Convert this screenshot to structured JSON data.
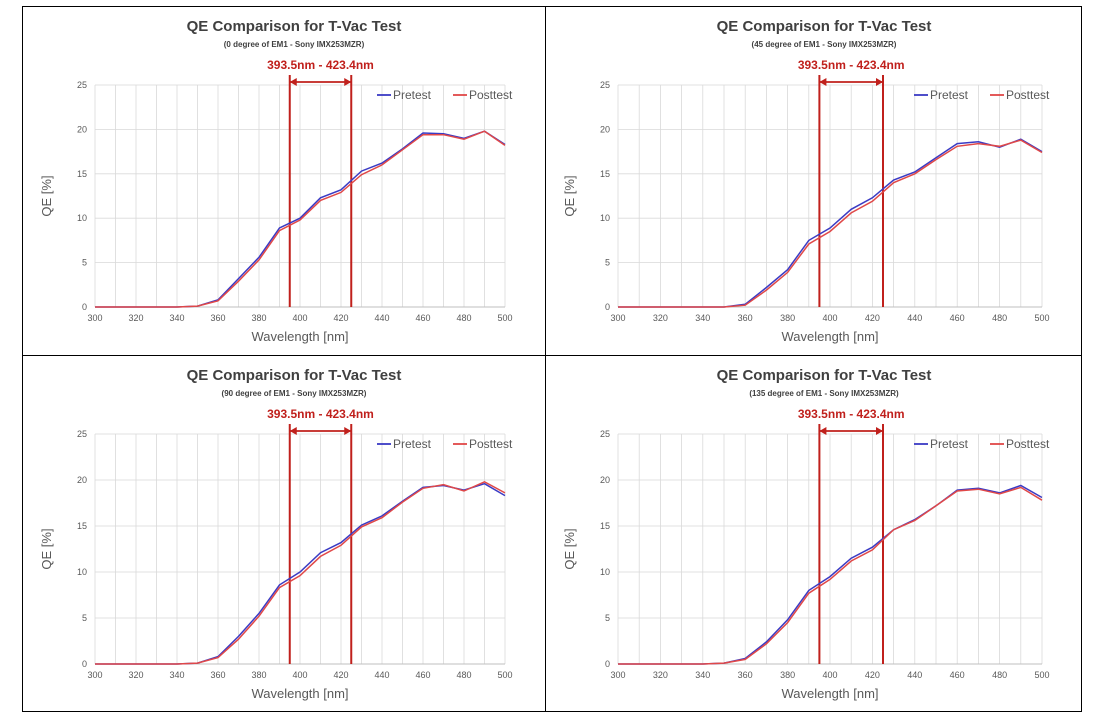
{
  "colors": {
    "pretest": "#3b3bc4",
    "posttest": "#e04848",
    "band": "#c0201c",
    "grid": "#d9d9d9",
    "axis": "#595959"
  },
  "chart_data": [
    {
      "type": "line",
      "title": "QE Comparison for T-Vac Test",
      "subtitle": "(0 degree of EM1 - Sony IMX253MZR)",
      "band_label": "393.5nm - 423.4nm",
      "band": [
        395,
        425
      ],
      "xlabel": "Wavelength [nm]",
      "ylabel": "QE [%]",
      "xlim": [
        300,
        500
      ],
      "ylim": [
        0,
        25
      ],
      "xticks": [
        "300",
        "320",
        "340",
        "360",
        "380",
        "400",
        "420",
        "440",
        "460",
        "480",
        "500"
      ],
      "yticks": [
        "0",
        "5",
        "10",
        "15",
        "20",
        "25"
      ],
      "legend": "top-right",
      "x": [
        300,
        310,
        320,
        330,
        340,
        350,
        360,
        370,
        380,
        390,
        400,
        410,
        420,
        430,
        440,
        450,
        460,
        470,
        480,
        490,
        500
      ],
      "series": [
        {
          "name": "Pretest",
          "values": [
            0,
            0,
            0,
            0,
            0,
            0.1,
            0.8,
            3.2,
            5.6,
            8.9,
            10.0,
            12.3,
            13.2,
            15.3,
            16.2,
            17.8,
            19.6,
            19.5,
            19.0,
            19.8,
            18.3
          ]
        },
        {
          "name": "Posttest",
          "values": [
            0,
            0,
            0,
            0,
            0,
            0.1,
            0.7,
            2.9,
            5.3,
            8.6,
            9.8,
            12.0,
            12.9,
            14.9,
            16.0,
            17.7,
            19.4,
            19.4,
            18.9,
            19.8,
            18.2
          ]
        }
      ]
    },
    {
      "type": "line",
      "title": "QE Comparison for T-Vac Test",
      "subtitle": "(45 degree of EM1 - Sony IMX253MZR)",
      "band_label": "393.5nm - 423.4nm",
      "band": [
        395,
        425
      ],
      "xlabel": "Wavelength [nm]",
      "ylabel": "QE [%]",
      "xlim": [
        300,
        500
      ],
      "ylim": [
        0,
        25
      ],
      "xticks": [
        "300",
        "320",
        "340",
        "360",
        "380",
        "400",
        "420",
        "440",
        "460",
        "480",
        "500"
      ],
      "yticks": [
        "0",
        "5",
        "10",
        "15",
        "20",
        "25"
      ],
      "legend": "top-right",
      "x": [
        300,
        310,
        320,
        330,
        340,
        350,
        360,
        370,
        380,
        390,
        400,
        410,
        420,
        430,
        440,
        450,
        460,
        470,
        480,
        490,
        500
      ],
      "series": [
        {
          "name": "Pretest",
          "values": [
            0,
            0,
            0,
            0,
            0,
            0,
            0.3,
            2.2,
            4.2,
            7.5,
            8.9,
            11.0,
            12.3,
            14.3,
            15.2,
            16.8,
            18.4,
            18.6,
            18.0,
            18.9,
            17.5
          ]
        },
        {
          "name": "Posttest",
          "values": [
            0,
            0,
            0,
            0,
            0,
            0,
            0.2,
            1.9,
            3.9,
            7.1,
            8.5,
            10.6,
            11.9,
            14.0,
            15.0,
            16.6,
            18.1,
            18.4,
            18.1,
            18.8,
            17.4
          ]
        }
      ]
    },
    {
      "type": "line",
      "title": "QE Comparison for T-Vac Test",
      "subtitle": "(90 degree of EM1 - Sony IMX253MZR)",
      "band_label": "393.5nm - 423.4nm",
      "band": [
        395,
        425
      ],
      "xlabel": "Wavelength [nm]",
      "ylabel": "QE [%]",
      "xlim": [
        300,
        500
      ],
      "ylim": [
        0,
        25
      ],
      "xticks": [
        "300",
        "320",
        "340",
        "360",
        "380",
        "400",
        "420",
        "440",
        "460",
        "480",
        "500"
      ],
      "yticks": [
        "0",
        "5",
        "10",
        "15",
        "20",
        "25"
      ],
      "legend": "top-right",
      "x": [
        300,
        310,
        320,
        330,
        340,
        350,
        360,
        370,
        380,
        390,
        400,
        410,
        420,
        430,
        440,
        450,
        460,
        470,
        480,
        490,
        500
      ],
      "series": [
        {
          "name": "Pretest",
          "values": [
            0,
            0,
            0,
            0,
            0,
            0.1,
            0.8,
            3.0,
            5.5,
            8.6,
            10.0,
            12.1,
            13.2,
            15.1,
            16.1,
            17.7,
            19.2,
            19.4,
            18.9,
            19.6,
            18.3
          ]
        },
        {
          "name": "Posttest",
          "values": [
            0,
            0,
            0,
            0,
            0,
            0.1,
            0.7,
            2.7,
            5.2,
            8.3,
            9.6,
            11.7,
            12.9,
            14.9,
            15.9,
            17.6,
            19.1,
            19.5,
            18.8,
            19.8,
            18.6
          ]
        }
      ]
    },
    {
      "type": "line",
      "title": "QE Comparison for T-Vac Test",
      "subtitle": "(135 degree of EM1 - Sony IMX253MZR)",
      "band_label": "393.5nm - 423.4nm",
      "band": [
        395,
        425
      ],
      "xlabel": "Wavelength [nm]",
      "ylabel": "QE [%]",
      "xlim": [
        300,
        500
      ],
      "ylim": [
        0,
        25
      ],
      "xticks": [
        "300",
        "320",
        "340",
        "360",
        "380",
        "400",
        "420",
        "440",
        "460",
        "480",
        "500"
      ],
      "yticks": [
        "0",
        "5",
        "10",
        "15",
        "20",
        "25"
      ],
      "legend": "top-right",
      "x": [
        300,
        310,
        320,
        330,
        340,
        350,
        360,
        370,
        380,
        390,
        400,
        410,
        420,
        430,
        440,
        450,
        460,
        470,
        480,
        490,
        500
      ],
      "series": [
        {
          "name": "Pretest",
          "values": [
            0,
            0,
            0,
            0,
            0,
            0.1,
            0.6,
            2.4,
            4.8,
            8.0,
            9.5,
            11.5,
            12.7,
            14.6,
            15.7,
            17.2,
            18.9,
            19.1,
            18.6,
            19.4,
            18.1
          ]
        },
        {
          "name": "Posttest",
          "values": [
            0,
            0,
            0,
            0,
            0,
            0.1,
            0.5,
            2.2,
            4.5,
            7.7,
            9.2,
            11.2,
            12.4,
            14.6,
            15.6,
            17.2,
            18.8,
            19.0,
            18.5,
            19.2,
            17.8
          ]
        }
      ]
    }
  ]
}
